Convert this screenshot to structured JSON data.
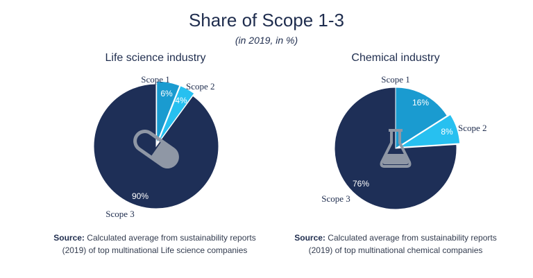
{
  "title": "Share of Scope 1-3",
  "subtitle": "(in 2019, in %)",
  "colors": {
    "scope1": "#1a9bd0",
    "scope2": "#27c0f0",
    "scope3": "#1e2f57",
    "icon": "#8f97a5"
  },
  "chart_data": [
    {
      "type": "pie",
      "title": "Life science industry",
      "categories": [
        "Scope 1",
        "Scope 2",
        "Scope 3"
      ],
      "values": [
        6,
        4,
        90
      ],
      "value_labels": [
        "6%",
        "4%",
        "90%"
      ],
      "icon": "pill-capsule-icon",
      "source_bold": "Source:",
      "source_line1": " Calculated average from sustainability reports",
      "source_line2": "(2019) of top multinational Life science companies"
    },
    {
      "type": "pie",
      "title": "Chemical industry",
      "categories": [
        "Scope 1",
        "Scope 2",
        "Scope 3"
      ],
      "values": [
        16,
        8,
        76
      ],
      "value_labels": [
        "16%",
        "8%",
        "76%"
      ],
      "icon": "flask-icon",
      "source_bold": "Source:",
      "source_line1": " Calculated average from sustainability reports",
      "source_line2": "(2019) of top multinational chemical companies"
    }
  ]
}
